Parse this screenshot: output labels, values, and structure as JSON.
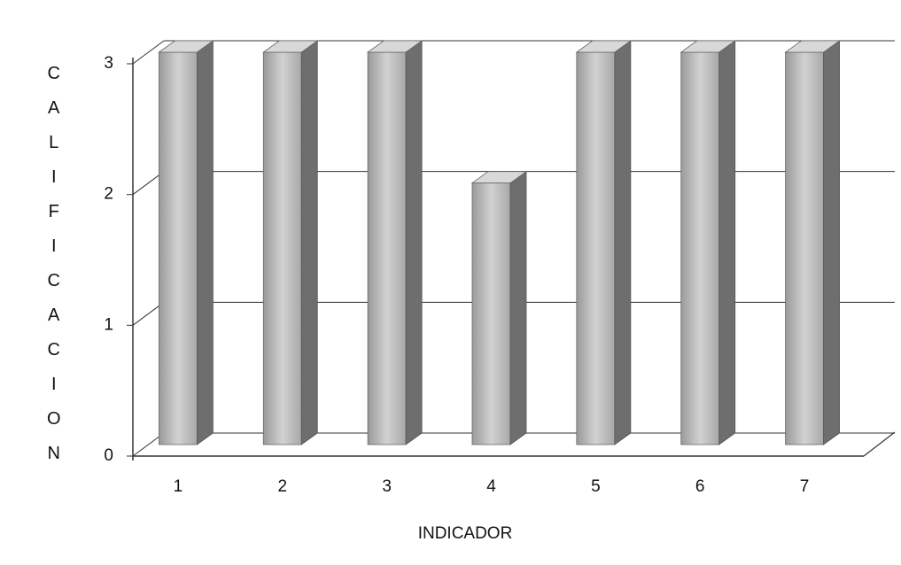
{
  "chart_data": {
    "type": "bar3d",
    "y_label": "CALIFICACION",
    "x_label": "INDICADOR",
    "categories": [
      "1",
      "2",
      "3",
      "4",
      "5",
      "6",
      "7"
    ],
    "values": [
      3,
      3,
      3,
      2,
      3,
      3,
      3
    ],
    "color": "#b8b8b8",
    "ylim": [
      0,
      3
    ],
    "yticks": [
      0,
      1,
      2,
      3
    ],
    "grid": true
  }
}
